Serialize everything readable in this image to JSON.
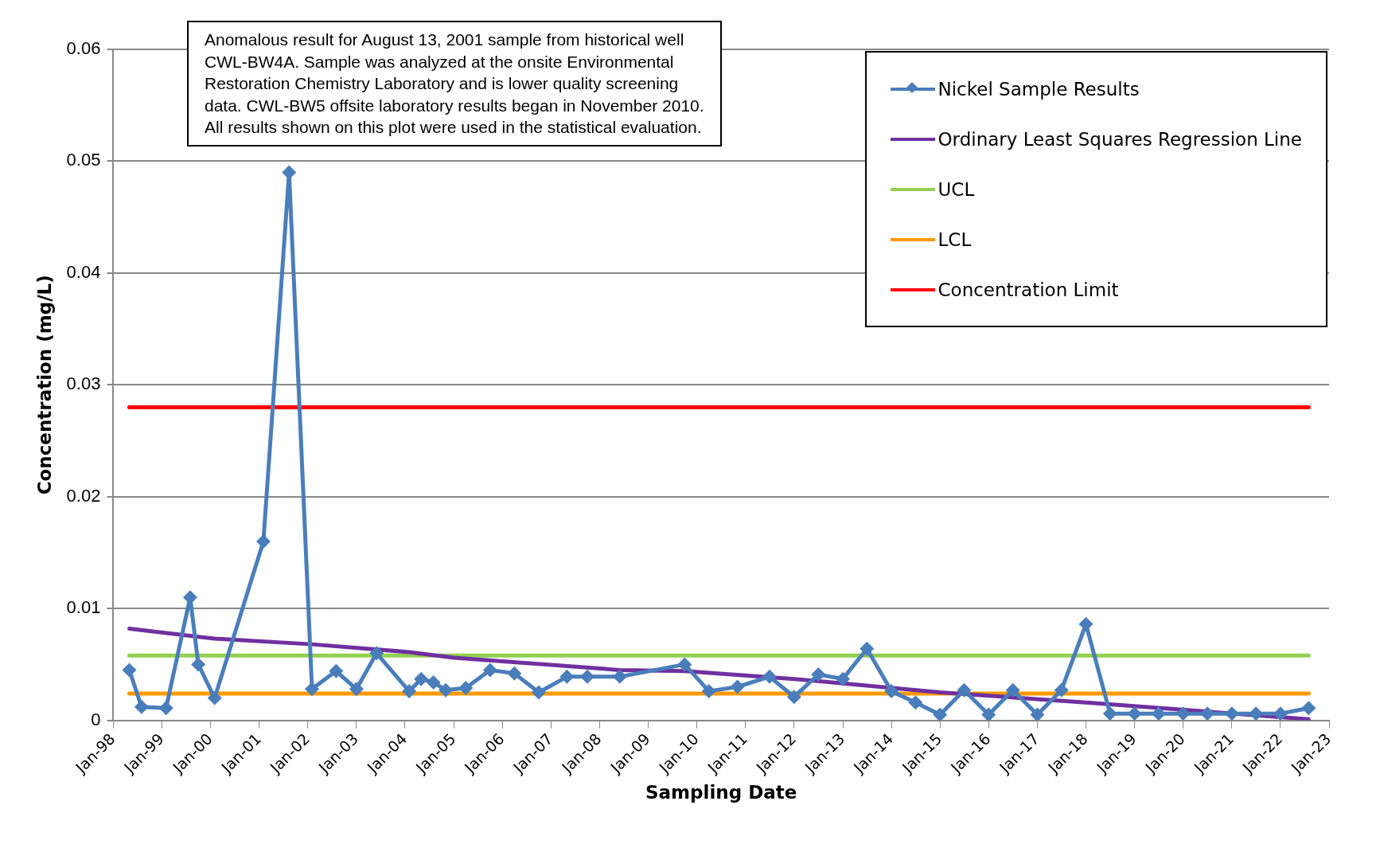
{
  "chart_data": {
    "type": "line",
    "xlabel": "Sampling Date",
    "ylabel": "Concentration (mg/L)",
    "annotations": [
      "Anomalous result for August 13, 2001 sample from historical well\nCWL-BW4A. Sample was analyzed at the onsite Environmental\nRestoration Chemistry Laboratory and is lower quality screening\ndata.  CWL-BW5 offsite laboratory results began in November 2010.\nAll results shown on this plot were used in the statistical evaluation."
    ],
    "series": [
      {
        "name": "Nickel Sample Results",
        "color": "#4a7ebb",
        "marker": "diamond",
        "x": [
          "1998-05",
          "1998-08",
          "1999-02",
          "1999-08",
          "1999-10",
          "2000-02",
          "2001-02",
          "2001-08-13",
          "2002-02",
          "2002-08",
          "2003-01",
          "2003-06",
          "2004-02",
          "2004-05",
          "2004-08",
          "2004-11",
          "2005-04",
          "2005-10",
          "2006-04",
          "2006-10",
          "2007-05",
          "2007-10",
          "2008-06",
          "2009-10",
          "2010-04",
          "2010-11",
          "2011-07",
          "2012-01",
          "2012-07",
          "2013-01",
          "2013-07",
          "2014-01",
          "2014-07",
          "2015-01",
          "2015-07",
          "2016-01",
          "2016-07",
          "2017-01",
          "2017-07",
          "2018-01",
          "2018-07",
          "2019-01",
          "2019-07",
          "2020-01",
          "2020-07",
          "2021-01",
          "2021-07",
          "2022-01",
          "2022-08"
        ],
        "values": [
          0.0045,
          0.0012,
          0.0011,
          0.011,
          0.005,
          0.002,
          0.016,
          0.049,
          0.0028,
          0.0044,
          0.0028,
          0.006,
          0.0026,
          0.0037,
          0.0034,
          0.0027,
          0.0029,
          0.0045,
          0.0042,
          0.0025,
          0.0039,
          0.0039,
          0.0039,
          0.005,
          0.0026,
          0.003,
          0.0039,
          0.0021,
          0.0041,
          0.0037,
          0.0064,
          0.0026,
          0.0016,
          0.0005,
          0.0027,
          0.0005,
          0.0027,
          0.0005,
          0.0027,
          0.0086,
          0.0006,
          0.0006,
          0.0006,
          0.0006,
          0.0006,
          0.0006,
          0.0006,
          0.0006,
          0.0011
        ]
      },
      {
        "name": "Ordinary Least Squares Regression Line",
        "color": "#7030a0",
        "marker": "none",
        "x": [
          "1998-05",
          "2000-02",
          "2002-02",
          "2004-02",
          "2005-01",
          "2008-06",
          "2009-10",
          "2012-01",
          "2015-01",
          "2018-01",
          "2022-08"
        ],
        "values": [
          0.0082,
          0.0073,
          0.0068,
          0.0061,
          0.0056,
          0.0045,
          0.0044,
          0.0037,
          0.0025,
          0.0016,
          0.0001
        ]
      },
      {
        "name": "UCL",
        "color": "#92d050",
        "marker": "none",
        "x": [
          "1998-05",
          "2022-08"
        ],
        "values": [
          0.0058,
          0.0058
        ]
      },
      {
        "name": "LCL",
        "color": "#ff9900",
        "marker": "none",
        "x": [
          "1998-05",
          "2022-08"
        ],
        "values": [
          0.0024,
          0.0024
        ]
      },
      {
        "name": "Concentration Limit",
        "color": "#ff0000",
        "marker": "none",
        "x": [
          "1998-05",
          "2022-08"
        ],
        "values": [
          0.028,
          0.028
        ]
      }
    ],
    "xlim": [
      "1998-01",
      "2023-01"
    ],
    "xticks": [
      {
        "value": "1998-01",
        "label": "Jan-98"
      },
      {
        "value": "1999-01",
        "label": "Jan-99"
      },
      {
        "value": "2000-01",
        "label": "Jan-00"
      },
      {
        "value": "2001-01",
        "label": "Jan-01"
      },
      {
        "value": "2002-01",
        "label": "Jan-02"
      },
      {
        "value": "2003-01",
        "label": "Jan-03"
      },
      {
        "value": "2004-01",
        "label": "Jan-04"
      },
      {
        "value": "2005-01",
        "label": "Jan-05"
      },
      {
        "value": "2006-01",
        "label": "Jan-06"
      },
      {
        "value": "2007-01",
        "label": "Jan-07"
      },
      {
        "value": "2008-01",
        "label": "Jan-08"
      },
      {
        "value": "2009-01",
        "label": "Jan-09"
      },
      {
        "value": "2010-01",
        "label": "Jan-10"
      },
      {
        "value": "2011-01",
        "label": "Jan-11"
      },
      {
        "value": "2012-01",
        "label": "Jan-12"
      },
      {
        "value": "2013-01",
        "label": "Jan-13"
      },
      {
        "value": "2014-01",
        "label": "Jan-14"
      },
      {
        "value": "2015-01",
        "label": "Jan-15"
      },
      {
        "value": "2016-01",
        "label": "Jan-16"
      },
      {
        "value": "2017-01",
        "label": "Jan-17"
      },
      {
        "value": "2018-01",
        "label": "Jan-18"
      },
      {
        "value": "2019-01",
        "label": "Jan-19"
      },
      {
        "value": "2020-01",
        "label": "Jan-20"
      },
      {
        "value": "2021-01",
        "label": "Jan-21"
      },
      {
        "value": "2022-01",
        "label": "Jan-22"
      },
      {
        "value": "2023-01",
        "label": "Jan-23"
      }
    ],
    "ylim": [
      0,
      0.06
    ],
    "yticks": [
      0,
      0.01,
      0.02,
      0.03,
      0.04,
      0.05,
      0.06
    ],
    "grid": "y",
    "legend": "top right"
  }
}
